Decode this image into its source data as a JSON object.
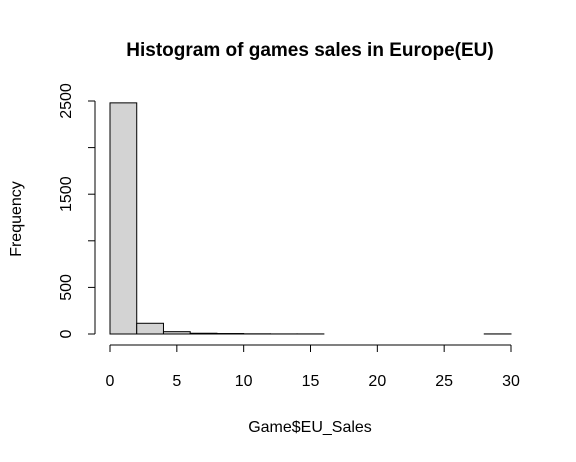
{
  "chart_data": {
    "type": "bar",
    "title": "Histogram of games sales in Europe(EU)",
    "xlabel": "Game$EU_Sales",
    "ylabel": "Frequency",
    "xlim": [
      0,
      30
    ],
    "ylim": [
      0,
      2500
    ],
    "x_ticks": [
      "0",
      "5",
      "10",
      "15",
      "20",
      "25",
      "30"
    ],
    "y_ticks": [
      "0",
      "500",
      "1500",
      "2500"
    ],
    "grid": false,
    "bin_width": 2,
    "bins": [
      {
        "start": 0,
        "end": 2,
        "count": 2480
      },
      {
        "start": 2,
        "end": 4,
        "count": 115
      },
      {
        "start": 4,
        "end": 6,
        "count": 25
      },
      {
        "start": 6,
        "end": 8,
        "count": 8
      },
      {
        "start": 8,
        "end": 10,
        "count": 5
      },
      {
        "start": 10,
        "end": 12,
        "count": 2
      },
      {
        "start": 12,
        "end": 14,
        "count": 1
      },
      {
        "start": 14,
        "end": 16,
        "count": 1
      },
      {
        "start": 16,
        "end": 18,
        "count": 0
      },
      {
        "start": 18,
        "end": 20,
        "count": 0
      },
      {
        "start": 20,
        "end": 22,
        "count": 0
      },
      {
        "start": 22,
        "end": 24,
        "count": 0
      },
      {
        "start": 24,
        "end": 26,
        "count": 0
      },
      {
        "start": 26,
        "end": 28,
        "count": 0
      },
      {
        "start": 28,
        "end": 30,
        "count": 1
      }
    ],
    "colors": {
      "bar_fill": "#d3d3d3",
      "bar_stroke": "#000000"
    }
  }
}
